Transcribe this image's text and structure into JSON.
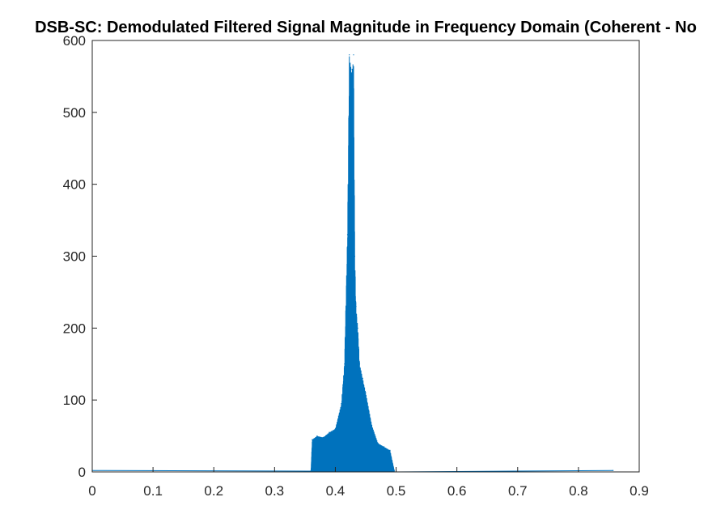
{
  "chart_data": {
    "type": "line",
    "title": "DSB-SC: Demodulated Filtered Signal Magnitude in Frequency Domain (Coherent - No",
    "xlabel": "",
    "ylabel": "",
    "xlim": [
      0,
      0.9
    ],
    "ylim": [
      0,
      600
    ],
    "x_ticks": [
      "0",
      "0.1",
      "0.2",
      "0.3",
      "0.4",
      "0.5",
      "0.6",
      "0.7",
      "0.8",
      "0.9"
    ],
    "y_ticks": [
      "0",
      "100",
      "200",
      "300",
      "400",
      "500",
      "600"
    ],
    "grid": false,
    "legend": "none",
    "series": [
      {
        "color": "#0072BD",
        "x": [
          0,
          0.36,
          0.362,
          0.37,
          0.38,
          0.39,
          0.4,
          0.41,
          0.415,
          0.42,
          0.423,
          0.426,
          0.428,
          0.43,
          0.432,
          0.434,
          0.437,
          0.44,
          0.445,
          0.45,
          0.46,
          0.47,
          0.48,
          0.49,
          0.497,
          0.5,
          0.857
        ],
        "y": [
          2,
          2,
          45,
          50,
          48,
          55,
          60,
          95,
          150,
          330,
          580,
          560,
          560,
          580,
          300,
          230,
          200,
          150,
          130,
          110,
          65,
          40,
          35,
          30,
          2,
          2,
          2
        ]
      }
    ]
  }
}
